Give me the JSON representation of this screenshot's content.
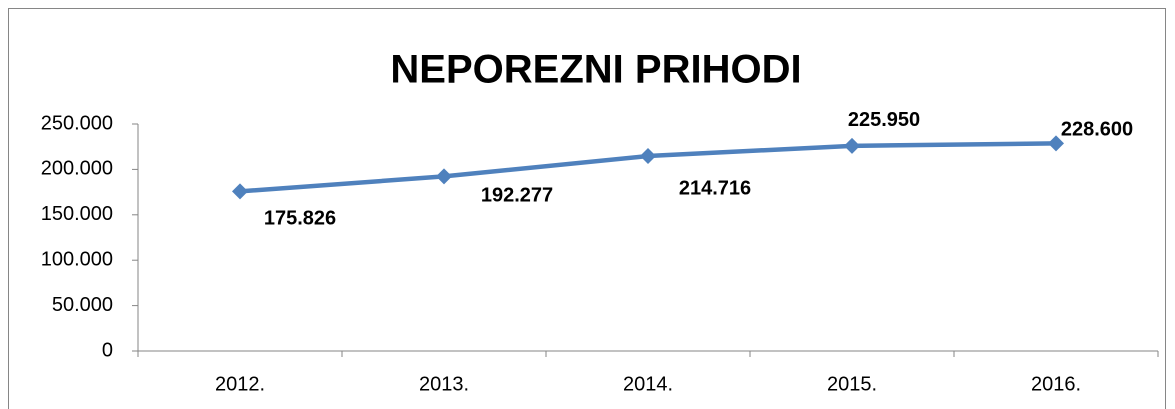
{
  "chart_data": {
    "type": "line",
    "title": "NEPOREZNI PRIHODI",
    "categories": [
      "2012.",
      "2013.",
      "2014.",
      "2015.",
      "2016."
    ],
    "series": [
      {
        "name": "NEPOREZNI PRIHODI",
        "color": "#4f81bd",
        "values": [
          175826,
          192277,
          214716,
          225950,
          228600
        ],
        "value_labels": [
          "175.826",
          "192.277",
          "214.716",
          "225.950",
          "228.600"
        ]
      }
    ],
    "ylim": [
      0,
      250000
    ],
    "yticks": [
      0,
      {
        "value": 50000,
        "label": "50.000"
      },
      {
        "value": 100000,
        "label": "100.000"
      },
      {
        "value": 150000,
        "label": "150.000"
      },
      {
        "value": 200000,
        "label": "200.000"
      },
      {
        "value": 250000,
        "label": "250.000"
      }
    ],
    "grid": false,
    "legend": false
  }
}
